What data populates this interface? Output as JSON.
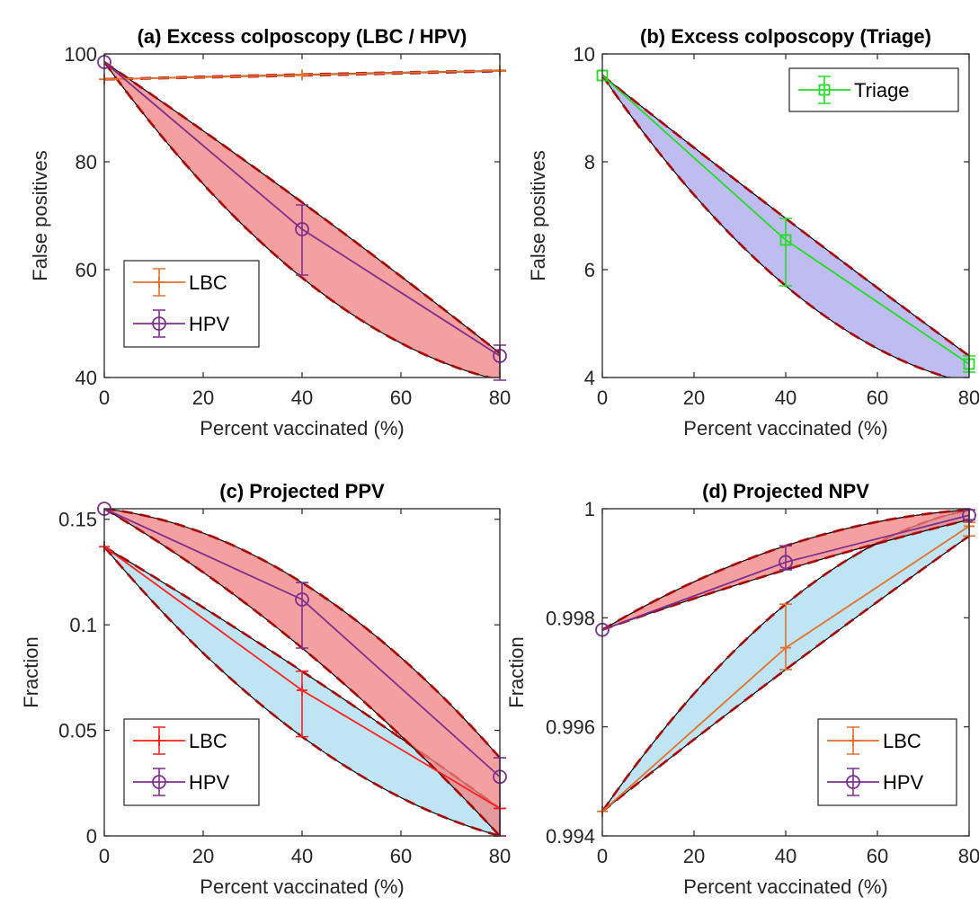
{
  "chart_data": [
    {
      "id": "a",
      "type": "line",
      "title": "(a) Excess colposcopy (LBC / HPV)",
      "xlabel": "Percent vaccinated (%)",
      "ylabel": "False positives",
      "xlim": [
        0,
        80
      ],
      "ylim": [
        40,
        100
      ],
      "xticks": [
        0,
        20,
        40,
        60,
        80
      ],
      "yticks": [
        40,
        60,
        80,
        100
      ],
      "ytick_labels": [
        "40",
        "60",
        "80",
        "100"
      ],
      "legend_position": "bottom-left",
      "bands": [
        {
          "series": "LBC",
          "color": "#f08080",
          "upper": [
            95.3,
            96.2,
            96.9
          ],
          "lower": [
            95.3,
            96.0,
            96.8
          ],
          "curve_upper": 0,
          "curve_lower": 0
        },
        {
          "series": "HPV",
          "color": "#f08080",
          "upper": [
            98.5,
            72.5,
            44.5
          ],
          "lower": [
            98.5,
            58.5,
            39.5
          ],
          "curve_upper": 0,
          "curve_lower": 0.5
        }
      ],
      "series": [
        {
          "name": "LBC",
          "color": "#e4722f",
          "marker": "plus",
          "x": [
            0,
            40,
            80
          ],
          "y": [
            95.3,
            96.1,
            96.9
          ],
          "err_low": [
            95.3,
            96.0,
            96.8
          ],
          "err_high": [
            95.3,
            96.2,
            97.0
          ]
        },
        {
          "name": "HPV",
          "color": "#7e2f8e",
          "marker": "circle",
          "x": [
            0,
            40,
            80
          ],
          "y": [
            98.5,
            67.5,
            44.0
          ],
          "err_low": [
            98.5,
            59.0,
            39.5
          ],
          "err_high": [
            98.5,
            72.0,
            46.0
          ]
        }
      ]
    },
    {
      "id": "b",
      "type": "line",
      "title": "(b) Excess colposcopy (Triage)",
      "xlabel": "Percent vaccinated (%)",
      "ylabel": "False positives",
      "xlim": [
        0,
        80
      ],
      "ylim": [
        4,
        10
      ],
      "xticks": [
        0,
        20,
        40,
        60,
        80
      ],
      "yticks": [
        4,
        6,
        8,
        10
      ],
      "ytick_labels": [
        "4",
        "6",
        "8",
        "10"
      ],
      "legend_position": "top-right",
      "bands": [
        {
          "series": "Triage",
          "color": "#aaa6ee",
          "upper": [
            9.6,
            6.95,
            4.4
          ],
          "lower": [
            9.6,
            5.7,
            3.9
          ],
          "curve_upper": 0,
          "curve_lower": 0.5
        }
      ],
      "series": [
        {
          "name": "Triage",
          "color": "#22dd22",
          "marker": "square",
          "x": [
            0,
            40,
            80
          ],
          "y": [
            9.6,
            6.55,
            4.25
          ],
          "err_low": [
            9.6,
            5.7,
            4.1
          ],
          "err_high": [
            9.6,
            6.95,
            4.4
          ]
        }
      ]
    },
    {
      "id": "c",
      "type": "line",
      "title": "(c) Projected PPV",
      "xlabel": "Percent vaccinated (%)",
      "ylabel": "Fraction",
      "xlim": [
        0,
        80
      ],
      "ylim": [
        0,
        0.155
      ],
      "xticks": [
        0,
        20,
        40,
        60,
        80
      ],
      "yticks": [
        0,
        0.05,
        0.1,
        0.15
      ],
      "ytick_labels": [
        "0",
        "0.05",
        "0.1",
        "0.15"
      ],
      "legend_position": "bottom-left",
      "bands": [
        {
          "series": "LBC",
          "color": "#a9dcf0",
          "upper": [
            0.137,
            0.078,
            0.013
          ],
          "lower": [
            0.137,
            0.047,
            0.0
          ],
          "curve_upper": 0,
          "curve_lower": 0.3
        },
        {
          "series": "HPV",
          "color": "#f08080",
          "upper": [
            0.155,
            0.12,
            0.037
          ],
          "lower": [
            0.155,
            0.089,
            0.0
          ],
          "curve_upper": 0.5,
          "curve_lower": 0.3
        }
      ],
      "series": [
        {
          "name": "LBC",
          "color": "#ff2020",
          "marker": "plus",
          "x": [
            0,
            40,
            80
          ],
          "y": [
            0.137,
            0.069,
            0.013
          ],
          "err_low": [
            0.137,
            0.047,
            0.0
          ],
          "err_high": [
            0.137,
            0.078,
            0.013
          ]
        },
        {
          "name": "HPV",
          "color": "#7e2f8e",
          "marker": "circle",
          "x": [
            0,
            40,
            80
          ],
          "y": [
            0.155,
            0.112,
            0.028
          ],
          "err_low": [
            0.155,
            0.089,
            0.0
          ],
          "err_high": [
            0.155,
            0.12,
            0.037
          ]
        }
      ]
    },
    {
      "id": "d",
      "type": "line",
      "title": "(d) Projected NPV",
      "xlabel": "Percent vaccinated (%)",
      "ylabel": "Fraction",
      "xlim": [
        0,
        80
      ],
      "ylim": [
        0.994,
        1
      ],
      "xticks": [
        0,
        20,
        40,
        60,
        80
      ],
      "yticks": [
        0.994,
        0.996,
        0.998,
        1
      ],
      "ytick_labels": [
        "0.994",
        "0.996",
        "0.998",
        "1"
      ],
      "legend_position": "bottom-right",
      "bands": [
        {
          "series": "LBC",
          "color": "#a9dcf0",
          "upper": [
            0.99445,
            0.99825,
            0.99998
          ],
          "lower": [
            0.99445,
            0.99705,
            0.9995
          ],
          "curve_upper": -0.5,
          "curve_lower": 0
        },
        {
          "series": "HPV",
          "color": "#f08080",
          "upper": [
            0.99778,
            0.99932,
            0.99998
          ],
          "lower": [
            0.99778,
            0.99888,
            0.9998
          ],
          "curve_upper": -0.3,
          "curve_lower": -0.2
        }
      ],
      "series": [
        {
          "name": "LBC",
          "color": "#e4722f",
          "marker": "plus",
          "x": [
            0,
            40,
            80
          ],
          "y": [
            0.99445,
            0.99745,
            0.99968
          ],
          "err_low": [
            0.99445,
            0.99705,
            0.9995
          ],
          "err_high": [
            0.99445,
            0.99825,
            0.99975
          ]
        },
        {
          "name": "HPV",
          "color": "#7e2f8e",
          "marker": "circle",
          "x": [
            0,
            40,
            80
          ],
          "y": [
            0.99778,
            0.99902,
            0.99988
          ],
          "err_low": [
            0.99778,
            0.99888,
            0.9998
          ],
          "err_high": [
            0.99778,
            0.99932,
            0.99998
          ]
        }
      ]
    }
  ]
}
